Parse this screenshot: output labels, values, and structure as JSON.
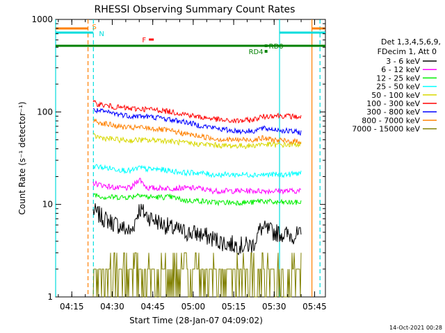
{
  "chart_data": {
    "type": "line",
    "title": "RHESSI Observing Summary Count Rates",
    "xlabel": "Start Time (28-Jan-07 04:09:02)",
    "ylabel": "Count Rate (s⁻¹ detector⁻¹)",
    "xlim": [
      "04:09",
      "05:49"
    ],
    "ylim": [
      1,
      1000
    ],
    "yscale": "log",
    "x_ticks": [
      "04:15",
      "04:30",
      "04:45",
      "05:00",
      "05:15",
      "05:30",
      "05:45"
    ],
    "y_ticks": [
      "1",
      "10",
      "100",
      "1000"
    ],
    "legend_title": [
      "Det 1,3,4,5,6,9,",
      "FDecim 1, Att 0"
    ],
    "legend_position": "right",
    "date_stamp": "14-Oct-2021 00:28",
    "series": [
      {
        "name": "3 - 6 keV",
        "color": "#000000",
        "x": [
          "04:23",
          "04:27",
          "04:32",
          "04:37",
          "04:40",
          "04:43",
          "04:47",
          "04:52",
          "04:57",
          "05:02",
          "05:07",
          "05:12",
          "05:17",
          "05:22",
          "05:25",
          "05:30",
          "05:35",
          "05:40"
        ],
        "values": [
          8.5,
          7.0,
          6.0,
          5.0,
          9.0,
          7.5,
          6.5,
          5.5,
          5.0,
          4.8,
          4.3,
          3.8,
          3.6,
          3.6,
          5.5,
          5.0,
          4.7,
          4.6
        ]
      },
      {
        "name": "6 - 12 keV",
        "color": "#ff00ff",
        "x": [
          "04:23",
          "04:27",
          "04:32",
          "04:37",
          "04:40",
          "04:43",
          "04:47",
          "04:52",
          "04:57",
          "05:02",
          "05:07",
          "05:12",
          "05:17",
          "05:22",
          "05:25",
          "05:30",
          "05:35",
          "05:40"
        ],
        "values": [
          17,
          16,
          15,
          15,
          19,
          15,
          15,
          15,
          15,
          15,
          14,
          14,
          14,
          14,
          14,
          14,
          14,
          14
        ]
      },
      {
        "name": "12 - 25 keV",
        "color": "#00ee00",
        "x": [
          "04:23",
          "04:27",
          "04:32",
          "04:37",
          "04:40",
          "04:43",
          "04:47",
          "04:52",
          "04:57",
          "05:02",
          "05:07",
          "05:12",
          "05:17",
          "05:22",
          "05:25",
          "05:30",
          "05:35",
          "05:40"
        ],
        "values": [
          13,
          12,
          12,
          12,
          13,
          12,
          12,
          12,
          11,
          11,
          10.5,
          10.5,
          10.5,
          10.5,
          11,
          10.5,
          10.5,
          10.5
        ]
      },
      {
        "name": "25 - 50 keV",
        "color": "#00ffff",
        "x": [
          "04:23",
          "04:27",
          "04:32",
          "04:37",
          "04:40",
          "04:43",
          "04:47",
          "04:52",
          "04:57",
          "05:02",
          "05:07",
          "05:12",
          "05:17",
          "05:22",
          "05:25",
          "05:30",
          "05:35",
          "05:40"
        ],
        "values": [
          26,
          25,
          24,
          23,
          25,
          24,
          24,
          23,
          22,
          22,
          21,
          21,
          21,
          21,
          21,
          21,
          21,
          22
        ]
      },
      {
        "name": "50 - 100 keV",
        "color": "#d8d800",
        "x": [
          "04:23",
          "04:27",
          "04:32",
          "04:37",
          "04:40",
          "04:43",
          "04:47",
          "04:52",
          "04:57",
          "05:02",
          "05:07",
          "05:12",
          "05:17",
          "05:22",
          "05:25",
          "05:30",
          "05:35",
          "05:40"
        ],
        "values": [
          55,
          52,
          50,
          49,
          50,
          49,
          50,
          48,
          46,
          45,
          44,
          43,
          43,
          43,
          45,
          44,
          44,
          45
        ]
      },
      {
        "name": "100 - 300 keV",
        "color": "#ff0000",
        "x": [
          "04:23",
          "04:27",
          "04:32",
          "04:37",
          "04:40",
          "04:43",
          "04:47",
          "04:52",
          "04:57",
          "05:02",
          "05:07",
          "05:12",
          "05:17",
          "05:22",
          "05:25",
          "05:30",
          "05:35",
          "05:40"
        ],
        "values": [
          125,
          118,
          112,
          108,
          108,
          107,
          105,
          100,
          95,
          88,
          85,
          80,
          80,
          82,
          88,
          92,
          90,
          88
        ]
      },
      {
        "name": "300 - 800 keV",
        "color": "#0000ff",
        "x": [
          "04:23",
          "04:27",
          "04:32",
          "04:37",
          "04:40",
          "04:43",
          "04:47",
          "04:52",
          "04:57",
          "05:02",
          "05:07",
          "05:12",
          "05:17",
          "05:22",
          "05:25",
          "05:30",
          "05:35",
          "05:40"
        ],
        "values": [
          105,
          100,
          95,
          90,
          90,
          89,
          87,
          82,
          78,
          72,
          68,
          64,
          62,
          62,
          66,
          65,
          62,
          60
        ]
      },
      {
        "name": "800 - 7000 keV",
        "color": "#ff8000",
        "x": [
          "04:23",
          "04:27",
          "04:32",
          "04:37",
          "04:40",
          "04:43",
          "04:47",
          "04:52",
          "04:57",
          "05:02",
          "05:07",
          "05:12",
          "05:17",
          "05:22",
          "05:25",
          "05:30",
          "05:35",
          "05:40"
        ],
        "values": [
          80,
          75,
          70,
          67,
          68,
          67,
          65,
          62,
          58,
          55,
          52,
          50,
          50,
          50,
          52,
          50,
          48,
          48
        ]
      },
      {
        "name": "7000 - 15000 keV",
        "color": "#808000",
        "x": [
          "04:23",
          "04:27",
          "04:32",
          "04:37",
          "04:40",
          "04:43",
          "04:47",
          "04:52",
          "04:57",
          "05:02",
          "05:07",
          "05:12",
          "05:17",
          "05:22",
          "05:25",
          "05:30",
          "05:35",
          "05:40"
        ],
        "values": [
          2.0,
          2.0,
          2.0,
          2.0,
          2.0,
          2.0,
          2.0,
          2.0,
          2.0,
          2.0,
          2.0,
          2.0,
          2.0,
          2.0,
          2.0,
          2.0,
          2.0,
          2.0
        ]
      }
    ],
    "annotations": [
      {
        "label": "S",
        "color": "#ff8000",
        "x": "04:21"
      },
      {
        "label": "N",
        "color": "#00dddd",
        "x": "04:23"
      },
      {
        "label": "F",
        "color": "#ff0000",
        "x": "04:41"
      },
      {
        "label": "RD0",
        "color": "#008000",
        "x": "05:27"
      },
      {
        "label": "RD4",
        "color": "#008000",
        "x": "05:27"
      }
    ],
    "vertical_markers": [
      {
        "color": "#00dddd",
        "style": "solid",
        "x": "04:09"
      },
      {
        "color": "#ff8000",
        "style": "dashed",
        "x": "04:21"
      },
      {
        "color": "#00dddd",
        "style": "dashed",
        "x": "04:23"
      },
      {
        "color": "#00dddd",
        "style": "solid",
        "x": "05:32"
      },
      {
        "color": "#ff8000",
        "style": "solid",
        "x": "05:44"
      },
      {
        "color": "#00dddd",
        "style": "dashed",
        "x": "05:47"
      }
    ]
  }
}
